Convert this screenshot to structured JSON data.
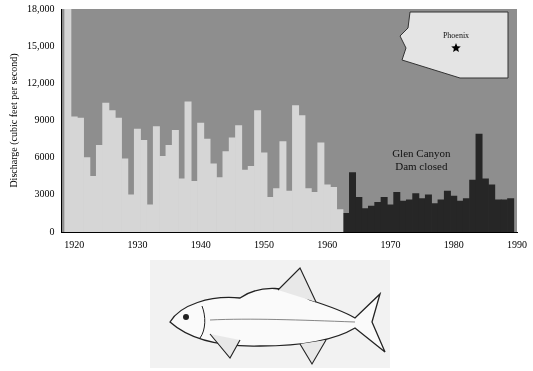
{
  "chart_data": {
    "type": "bar",
    "y_label": "Discharge (cubic feet per second)",
    "annotations": [
      "Glen Canyon Dam closed"
    ],
    "map_label": "Phoenix",
    "x": [
      1919,
      1920,
      1921,
      1922,
      1923,
      1924,
      1925,
      1926,
      1927,
      1928,
      1929,
      1930,
      1931,
      1932,
      1933,
      1934,
      1935,
      1936,
      1937,
      1938,
      1939,
      1940,
      1941,
      1942,
      1943,
      1944,
      1945,
      1946,
      1947,
      1948,
      1949,
      1950,
      1951,
      1952,
      1953,
      1954,
      1955,
      1956,
      1957,
      1958,
      1959,
      1960,
      1961,
      1962,
      1963,
      1964,
      1965,
      1966,
      1967,
      1968,
      1969,
      1970,
      1971,
      1972,
      1973,
      1974,
      1975,
      1976,
      1977,
      1978,
      1979,
      1980,
      1981,
      1982,
      1983,
      1984,
      1985,
      1986,
      1987,
      1988,
      1989
    ],
    "series": [
      {
        "color": "#d6d6d6",
        "values": [
          18000,
          9300,
          9200,
          6000,
          4500,
          7000,
          10400,
          9800,
          9200,
          5900,
          3000,
          8300,
          7400,
          2200,
          8500,
          6100,
          7000,
          8200,
          4300,
          10500,
          4100,
          8800,
          7500,
          5500,
          4400,
          6500,
          7600,
          8600,
          5000,
          5300,
          9800,
          6400,
          2800,
          3500,
          7300,
          3300,
          10200,
          9400,
          3500,
          3200,
          7200,
          3800,
          3600,
          1800,
          null,
          null,
          null,
          null,
          null,
          null,
          null,
          null,
          null,
          null,
          null,
          null,
          null,
          null,
          null,
          null,
          null,
          null,
          null,
          null,
          null,
          null,
          null,
          null,
          null,
          null,
          null
        ]
      },
      {
        "color": "#262626",
        "values": [
          null,
          null,
          null,
          null,
          null,
          null,
          null,
          null,
          null,
          null,
          null,
          null,
          null,
          null,
          null,
          null,
          null,
          null,
          null,
          null,
          null,
          null,
          null,
          null,
          null,
          null,
          null,
          null,
          null,
          null,
          null,
          null,
          null,
          null,
          null,
          null,
          null,
          null,
          null,
          null,
          null,
          null,
          null,
          null,
          1500,
          4800,
          2800,
          1900,
          2100,
          2400,
          2800,
          2200,
          3200,
          2500,
          2600,
          3100,
          2700,
          3000,
          2300,
          2600,
          3300,
          2900,
          2500,
          2700,
          4200,
          7900,
          4300,
          3800,
          2600,
          2600,
          2700
        ]
      }
    ],
    "xlim": [
      1918,
      1990
    ],
    "xticks": [
      1920,
      1930,
      1940,
      1950,
      1960,
      1970,
      1980,
      1990
    ],
    "ylim": [
      0,
      18000
    ],
    "yticks": [
      0,
      3000,
      6000,
      9000,
      {
        "value": 12000,
        "label": "12,000"
      },
      {
        "value": 15000,
        "label": "15,000"
      },
      {
        "value": 18000,
        "label": "18,000"
      }
    ],
    "grid": false
  }
}
